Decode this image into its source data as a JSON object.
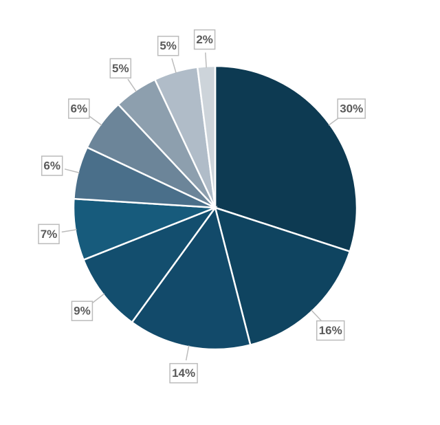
{
  "chart_data": {
    "type": "pie",
    "values": [
      30,
      16,
      14,
      9,
      7,
      6,
      6,
      5,
      5,
      2
    ],
    "value_labels": [
      "30%",
      "16%",
      "14%",
      "9%",
      "7%",
      "6%",
      "6%",
      "5%",
      "5%",
      "2%"
    ],
    "colors": [
      "#0d3a52",
      "#0f4460",
      "#124a6a",
      "#134e6e",
      "#175b7c",
      "#4a6f8a",
      "#6c8599",
      "#8d9fae",
      "#b0bcc8",
      "#cdd4da"
    ]
  }
}
